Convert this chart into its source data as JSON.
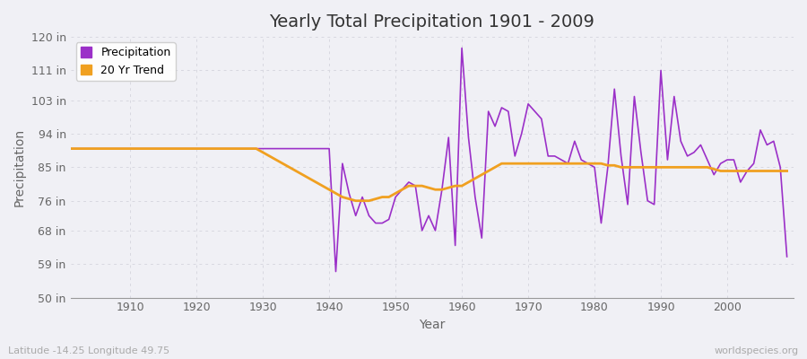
{
  "title": "Yearly Total Precipitation 1901 - 2009",
  "xlabel": "Year",
  "ylabel": "Precipitation",
  "background_color": "#f0f0f5",
  "plot_bg_color": "#f0f0f5",
  "grid_color": "#d8d8e0",
  "precip_color": "#9b30c8",
  "trend_color": "#f0a020",
  "ylim": [
    50,
    120
  ],
  "yticks": [
    50,
    59,
    68,
    76,
    85,
    94,
    103,
    111,
    120
  ],
  "ytick_labels": [
    "50 in",
    "59 in",
    "68 in",
    "76 in",
    "85 in",
    "94 in",
    "103 in",
    "111 in",
    "120 in"
  ],
  "xticks": [
    1910,
    1920,
    1930,
    1940,
    1950,
    1960,
    1970,
    1980,
    1990,
    2000
  ],
  "years": [
    1901,
    1902,
    1903,
    1904,
    1905,
    1906,
    1907,
    1908,
    1909,
    1910,
    1911,
    1912,
    1913,
    1914,
    1915,
    1916,
    1917,
    1918,
    1919,
    1920,
    1921,
    1922,
    1923,
    1924,
    1925,
    1926,
    1927,
    1928,
    1929,
    1930,
    1931,
    1932,
    1933,
    1934,
    1935,
    1936,
    1937,
    1938,
    1939,
    1940,
    1941,
    1942,
    1943,
    1944,
    1945,
    1946,
    1947,
    1948,
    1949,
    1950,
    1951,
    1952,
    1953,
    1954,
    1955,
    1956,
    1957,
    1958,
    1959,
    1960,
    1961,
    1962,
    1963,
    1964,
    1965,
    1966,
    1967,
    1968,
    1969,
    1970,
    1971,
    1972,
    1973,
    1974,
    1975,
    1976,
    1977,
    1978,
    1979,
    1980,
    1981,
    1982,
    1983,
    1984,
    1985,
    1986,
    1987,
    1988,
    1989,
    1990,
    1991,
    1992,
    1993,
    1994,
    1995,
    1996,
    1997,
    1998,
    1999,
    2000,
    2001,
    2002,
    2003,
    2004,
    2005,
    2006,
    2007,
    2008,
    2009
  ],
  "precip": [
    90,
    90,
    90,
    90,
    90,
    90,
    90,
    90,
    90,
    90,
    90,
    90,
    90,
    90,
    90,
    90,
    90,
    90,
    90,
    90,
    90,
    90,
    90,
    90,
    90,
    90,
    90,
    90,
    90,
    90,
    90,
    90,
    90,
    90,
    90,
    90,
    90,
    90,
    90,
    90,
    57,
    86,
    78,
    72,
    77,
    72,
    70,
    70,
    71,
    77,
    79,
    81,
    80,
    68,
    72,
    68,
    79,
    93,
    64,
    117,
    93,
    77,
    66,
    100,
    96,
    101,
    100,
    88,
    94,
    102,
    100,
    98,
    88,
    88,
    87,
    86,
    92,
    87,
    86,
    85,
    70,
    85,
    106,
    88,
    75,
    104,
    89,
    76,
    75,
    111,
    87,
    104,
    92,
    88,
    89,
    91,
    87,
    83,
    86,
    87,
    87,
    81,
    84,
    86,
    95,
    91,
    92,
    85,
    61
  ],
  "trend": [
    90,
    90,
    90,
    90,
    90,
    90,
    90,
    90,
    90,
    90,
    90,
    90,
    90,
    90,
    90,
    90,
    90,
    90,
    90,
    90,
    90,
    90,
    90,
    90,
    90,
    90,
    90,
    90,
    90,
    89,
    88,
    87,
    86,
    85,
    84,
    83,
    82,
    81,
    80,
    79,
    78,
    77,
    76.5,
    76,
    76,
    76,
    76.5,
    77,
    77,
    78,
    79,
    80,
    80,
    80,
    79.5,
    79,
    79,
    79.5,
    80,
    80,
    81,
    82,
    83,
    84,
    85,
    86,
    86,
    86,
    86,
    86,
    86,
    86,
    86,
    86,
    86,
    86,
    86,
    86,
    86,
    86,
    86,
    85.5,
    85.5,
    85,
    85,
    85,
    85,
    85,
    85,
    85,
    85,
    85,
    85,
    85,
    85,
    85,
    85,
    84.5,
    84,
    84,
    84,
    84,
    84,
    84,
    84,
    84,
    84,
    84,
    84
  ],
  "legend_precip": "Precipitation",
  "legend_trend": "20 Yr Trend",
  "footer_left": "Latitude -14.25 Longitude 49.75",
  "footer_right": "worldspecies.org",
  "title_fontsize": 14,
  "axis_label_fontsize": 10,
  "tick_fontsize": 9
}
